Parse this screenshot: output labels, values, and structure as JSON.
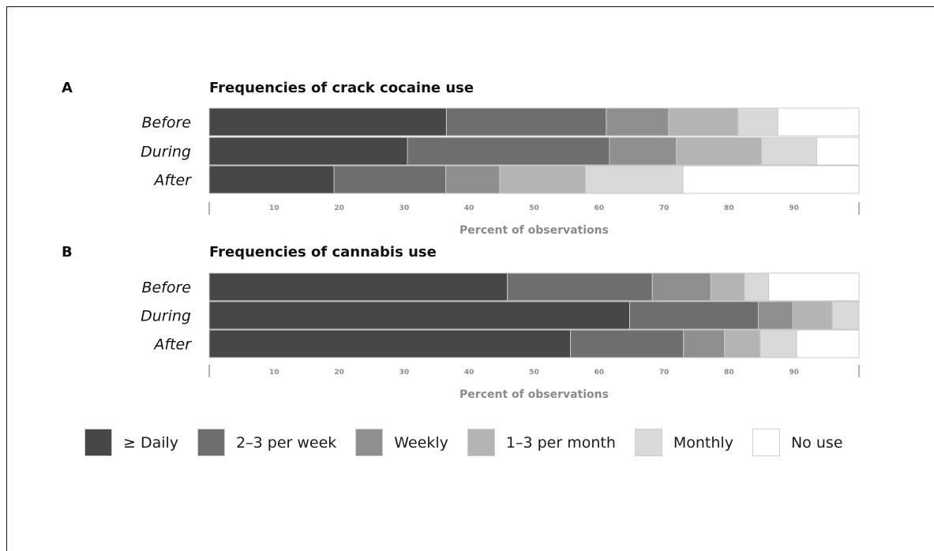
{
  "chart_data": [
    {
      "type": "bar",
      "orientation": "horizontal",
      "stacked": true,
      "panel_label": "A",
      "title": "Frequencies of crack cocaine use",
      "categories": [
        "Before",
        "During",
        "After"
      ],
      "xlabel": "Percent of observations",
      "xlim": [
        0,
        100
      ],
      "xticks": [
        10,
        20,
        30,
        40,
        50,
        60,
        70,
        80,
        90
      ],
      "series": [
        {
          "name": "≥ Daily",
          "values": [
            36.5,
            30.5,
            19.2
          ]
        },
        {
          "name": "2–3 per week",
          "values": [
            24.6,
            31.1,
            17.2
          ]
        },
        {
          "name": "Weekly",
          "values": [
            9.6,
            10.3,
            8.3
          ]
        },
        {
          "name": "1–3 per month",
          "values": [
            10.7,
            13.1,
            13.2
          ]
        },
        {
          "name": "Monthly",
          "values": [
            6.1,
            8.5,
            15.0
          ]
        },
        {
          "name": "No use",
          "values": [
            12.5,
            6.5,
            27.1
          ]
        }
      ]
    },
    {
      "type": "bar",
      "orientation": "horizontal",
      "stacked": true,
      "panel_label": "B",
      "title": "Frequencies of cannabis use",
      "categories": [
        "Before",
        "During",
        "After"
      ],
      "xlabel": "Percent of observations",
      "xlim": [
        0,
        100
      ],
      "xticks": [
        10,
        20,
        30,
        40,
        50,
        60,
        70,
        80,
        90
      ],
      "series": [
        {
          "name": "≥ Daily",
          "values": [
            45.9,
            64.7,
            55.6
          ]
        },
        {
          "name": "2–3 per week",
          "values": [
            22.3,
            19.8,
            17.4
          ]
        },
        {
          "name": "Weekly",
          "values": [
            9.0,
            5.3,
            6.3
          ]
        },
        {
          "name": "1–3 per month",
          "values": [
            5.2,
            6.1,
            5.5
          ]
        },
        {
          "name": "Monthly",
          "values": [
            3.7,
            4.1,
            5.6
          ]
        },
        {
          "name": "No use",
          "values": [
            13.9,
            0.0,
            9.6
          ]
        }
      ]
    }
  ],
  "legend": {
    "items": [
      {
        "label": "≥ Daily",
        "color": "#474747"
      },
      {
        "label": "2–3 per week",
        "color": "#6e6e6e"
      },
      {
        "label": "Weekly",
        "color": "#8f8f8f"
      },
      {
        "label": "1–3 per month",
        "color": "#b4b4b4"
      },
      {
        "label": "Monthly",
        "color": "#d9d9d9"
      },
      {
        "label": "No use",
        "color": "#ffffff"
      }
    ]
  },
  "colors": {
    "tick_label": "#8a8a8a",
    "axis": "#888888",
    "bar_border": "#c8c8c8"
  }
}
